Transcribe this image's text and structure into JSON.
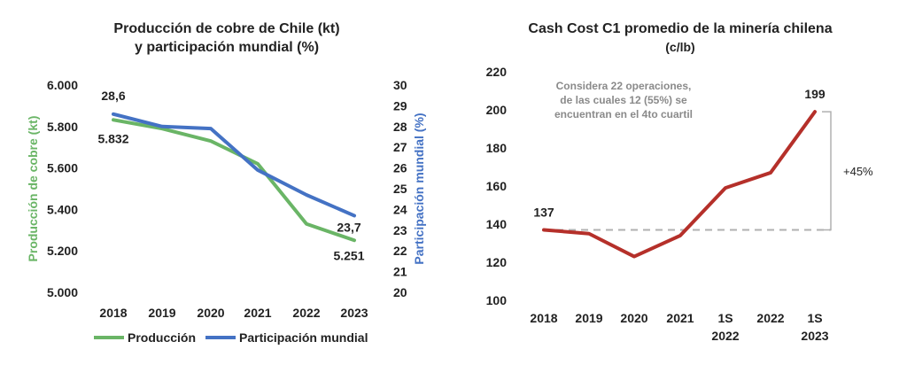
{
  "colors": {
    "green": "#6ab566",
    "blue": "#4472c4",
    "red": "#b5302a",
    "dashed": "#b0b0b0"
  },
  "chart_data": [
    {
      "type": "line",
      "title_line1": "Producción de cobre de Chile (kt)",
      "title_line2": "y participación mundial (%)",
      "x": [
        "2018",
        "2019",
        "2020",
        "2021",
        "2022",
        "2023"
      ],
      "y_left": {
        "label": "Producción de cobre (kt)",
        "ylim": [
          5000,
          6000
        ],
        "ticks": [
          "5.000",
          "5.200",
          "5.400",
          "5.600",
          "5.800",
          "6.000"
        ]
      },
      "y_right": {
        "label": "Participación mundial (%)",
        "ylim": [
          20,
          30
        ],
        "ticks": [
          "20",
          "21",
          "22",
          "23",
          "24",
          "25",
          "26",
          "27",
          "28",
          "29",
          "30"
        ]
      },
      "series": [
        {
          "name": "Producción",
          "axis": "left",
          "color": "#6ab566",
          "values": [
            5832,
            5790,
            5730,
            5620,
            5330,
            5251
          ]
        },
        {
          "name": "Participación mundial",
          "axis": "right",
          "color": "#4472c4",
          "values": [
            28.6,
            28.0,
            27.9,
            25.9,
            24.7,
            23.7
          ]
        }
      ],
      "data_labels": {
        "prod_first": "5.832",
        "prod_last": "5.251",
        "share_first": "28,6",
        "share_last": "23,7"
      },
      "legend": {
        "placement": "bottom"
      },
      "grid": false
    },
    {
      "type": "line",
      "title": "Cash Cost C1 promedio de la minería chilena",
      "subtitle": "(c/lb)",
      "x": [
        "2018",
        "2019",
        "2020",
        "2021",
        "1S 2022",
        "2022",
        "1S 2023"
      ],
      "ylim": [
        100,
        220
      ],
      "ticks": [
        "100",
        "120",
        "140",
        "160",
        "180",
        "200",
        "220"
      ],
      "series": [
        {
          "name": "",
          "color": "#b5302a",
          "values": [
            137,
            135,
            123,
            134,
            159,
            167,
            199
          ]
        }
      ],
      "data_labels": {
        "first": "137",
        "last": "199"
      },
      "reference_line": 137,
      "annotation": "Considera 22 operaciones, de las cuales 12 (55%) se encuentran en el 4to cuartil",
      "annotation_lines": [
        "Considera 22 operaciones,",
        "de las cuales 12 (55%) se",
        "encuentran en el 4to cuartil"
      ],
      "change_label": "+45%",
      "grid": false
    }
  ]
}
